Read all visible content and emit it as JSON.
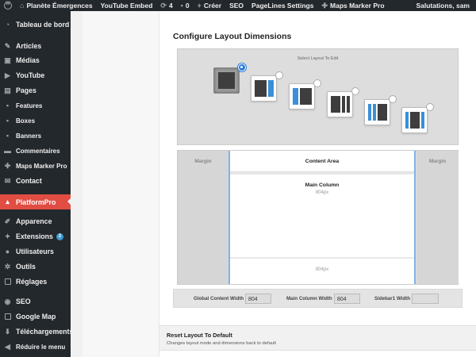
{
  "admin_bar": {
    "site_name": "Planète Émergences",
    "youtube_embed": "YouTube Embed",
    "updates_count": "4",
    "comments_count": "0",
    "new_label": "Créer",
    "seo": "SEO",
    "pagelines_settings": "PageLines Settings",
    "maps_marker_pro": "Maps Marker Pro",
    "greeting": "Salutations, sam"
  },
  "sidebar": {
    "items": [
      {
        "label": "Tableau de bord",
        "icon": "dashboard-icon"
      },
      {
        "label": "Articles",
        "icon": "pin-icon"
      },
      {
        "label": "Médias",
        "icon": "media-icon"
      },
      {
        "label": "YouTube",
        "icon": "youtube-icon"
      },
      {
        "label": "Pages",
        "icon": "pages-icon"
      },
      {
        "label": "Features",
        "icon": "features-icon"
      },
      {
        "label": "Boxes",
        "icon": "boxes-icon"
      },
      {
        "label": "Banners",
        "icon": "banners-icon"
      },
      {
        "label": "Commentaires",
        "icon": "comments-icon"
      },
      {
        "label": "Maps Marker Pro",
        "icon": "map-marker-icon"
      },
      {
        "label": "Contact",
        "icon": "mail-icon"
      },
      {
        "label": "PlatformPro",
        "icon": "platform-icon"
      },
      {
        "label": "Apparence",
        "icon": "brush-icon"
      },
      {
        "label": "Extensions",
        "icon": "plugin-icon",
        "badge": "2"
      },
      {
        "label": "Utilisateurs",
        "icon": "users-icon"
      },
      {
        "label": "Outils",
        "icon": "wrench-icon"
      },
      {
        "label": "Réglages",
        "icon": "settings-icon"
      },
      {
        "label": "SEO",
        "icon": "seo-icon"
      },
      {
        "label": "Google Map",
        "icon": "google-map-icon"
      },
      {
        "label": "Téléchargements",
        "icon": "download-icon"
      },
      {
        "label": "Réduire le menu",
        "icon": "collapse-icon"
      }
    ]
  },
  "panel": {
    "title": "Configure Layout Dimensions",
    "select_label": "Select Layout To Edit"
  },
  "dimensions": {
    "margin_left": "Margin",
    "margin_right": "Margin",
    "content_area": "Content Area",
    "main_column": "Main Column",
    "main_column_px": "804px",
    "sidebar_px": "804px"
  },
  "widths": {
    "global_label": "Global Content Width",
    "global_value": "804",
    "main_label": "Main Column Width",
    "main_value": "804",
    "sidebar_label": "Sidebar1 Width",
    "sidebar_value": ""
  },
  "reset": {
    "title": "Reset Layout To Default",
    "description": "Changes layout mode and dimensions back to default"
  },
  "colors": {
    "admin_bar_bg": "#23282d",
    "active_menu": "#e14d43",
    "accent_blue": "#3b8fd6"
  }
}
